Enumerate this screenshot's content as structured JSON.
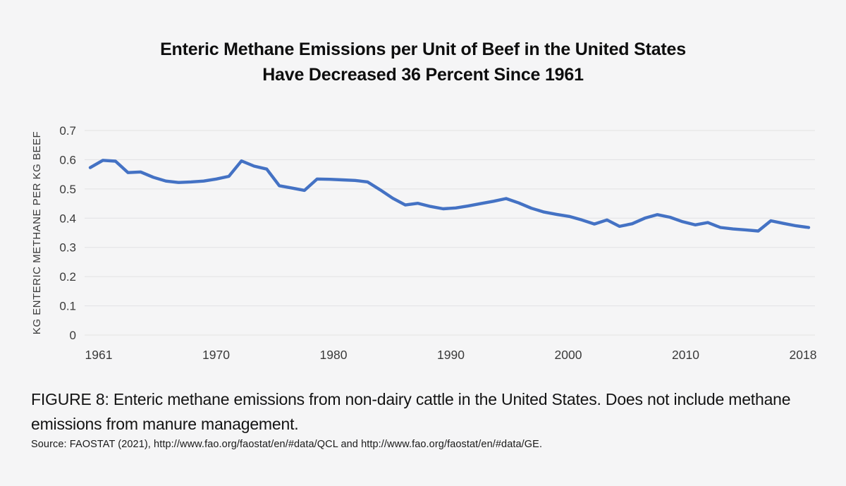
{
  "title": {
    "line1": "Enteric Methane Emissions per Unit of Beef in the United States",
    "line2": "Have Decreased 36 Percent Since 1961"
  },
  "chart_data": {
    "type": "line",
    "title": "Enteric Methane Emissions per Unit of Beef in the United States Have Decreased 36 Percent Since 1961",
    "xlabel": "",
    "ylabel": "KG ENTERIC METHANE PER KG BEEF",
    "ylim": [
      0,
      0.7
    ],
    "y_ticks": [
      "0",
      "0.1",
      "0.2",
      "0.3",
      "0.4",
      "0.5",
      "0.6",
      "0.7"
    ],
    "x_tick_labels": [
      "1961",
      "1970",
      "1980",
      "1990",
      "2000",
      "2010",
      "2018"
    ],
    "grid": "horizontal gridlines only",
    "legend": "none",
    "series": [
      {
        "name": "kg enteric methane per kg beef (non-dairy cattle, United States)",
        "color": "#4472C4",
        "x": [
          1961,
          1962,
          1963,
          1964,
          1965,
          1966,
          1967,
          1968,
          1969,
          1970,
          1971,
          1972,
          1973,
          1974,
          1975,
          1976,
          1977,
          1978,
          1979,
          1980,
          1981,
          1982,
          1983,
          1984,
          1985,
          1986,
          1987,
          1988,
          1989,
          1990,
          1991,
          1992,
          1993,
          1994,
          1995,
          1996,
          1997,
          1998,
          1999,
          2000,
          2001,
          2002,
          2003,
          2004,
          2005,
          2006,
          2007,
          2008,
          2009,
          2010,
          2011,
          2012,
          2013,
          2014,
          2015,
          2016,
          2017,
          2018
        ],
        "values": [
          0.573,
          0.598,
          0.595,
          0.556,
          0.558,
          0.54,
          0.527,
          0.522,
          0.524,
          0.527,
          0.534,
          0.543,
          0.596,
          0.578,
          0.568,
          0.511,
          0.503,
          0.495,
          0.534,
          0.533,
          0.531,
          0.529,
          0.524,
          0.497,
          0.468,
          0.445,
          0.451,
          0.44,
          0.432,
          0.435,
          0.442,
          0.45,
          0.458,
          0.467,
          0.452,
          0.434,
          0.421,
          0.413,
          0.406,
          0.394,
          0.38,
          0.394,
          0.372,
          0.381,
          0.4,
          0.412,
          0.403,
          0.388,
          0.377,
          0.385,
          0.368,
          0.363,
          0.36,
          0.356,
          0.391,
          0.382,
          0.374,
          0.368
        ]
      }
    ]
  },
  "caption": {
    "line1": "FIGURE 8: Enteric methane emissions from non-dairy cattle in the United States. Does not include methane",
    "line2": "emissions from manure management."
  },
  "source": "Source: FAOSTAT (2021), http://www.fao.org/faostat/en/#data/QCL and http://www.fao.org/faostat/en/#data/GE.",
  "colors": {
    "background": "#F5F5F6",
    "gridline": "#E2E2E3",
    "line": "#4472C4",
    "title_text": "#0E0E0E",
    "axis_text": "#3A3A3A",
    "caption_text": "#141414"
  }
}
